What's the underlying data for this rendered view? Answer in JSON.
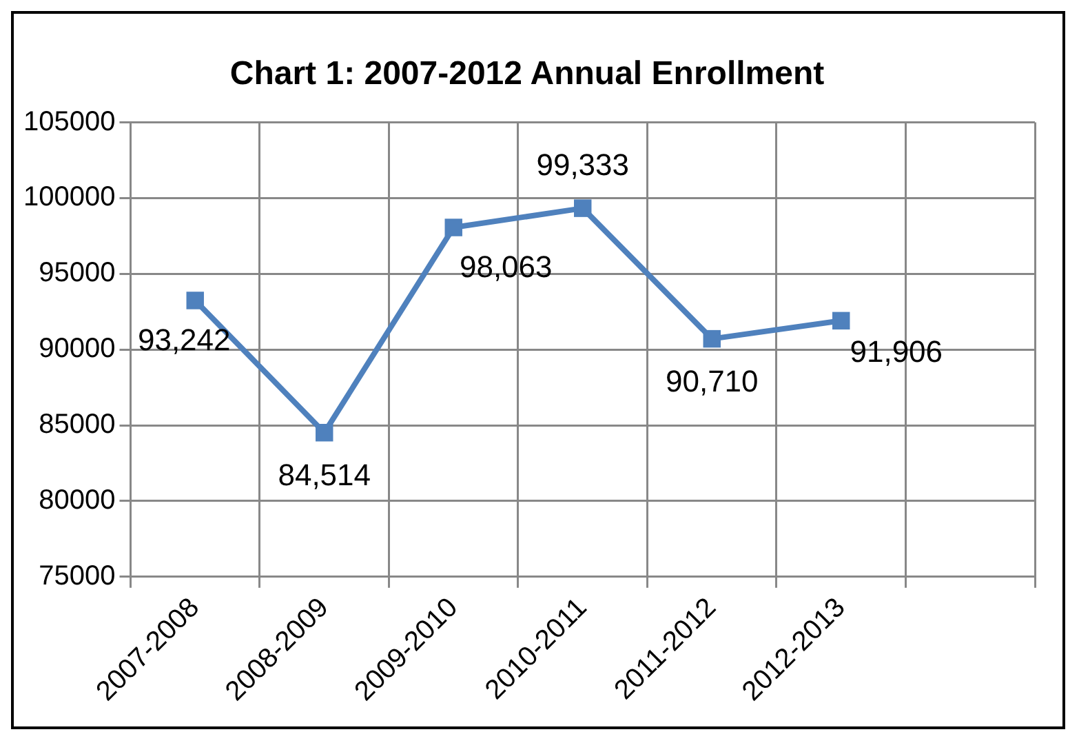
{
  "chart_data": {
    "type": "line",
    "title": "Chart 1: 2007-2012 Annual Enrollment",
    "categories": [
      "2007-2008",
      "2008-2009",
      "2009-2010",
      "2010-2011",
      "2011-2012",
      "2012-2013",
      null
    ],
    "series": [
      {
        "color": "#4f81bd",
        "values": [
          93242,
          84514,
          98063,
          99333,
          90710,
          91906,
          null
        ],
        "value_labels": [
          "93,242",
          "84,514",
          "98,063",
          "99,333",
          "90,710",
          "91,906",
          null
        ]
      }
    ],
    "ylim": [
      75000,
      105000
    ],
    "yticks": [
      75000,
      80000,
      85000,
      90000,
      95000,
      100000,
      105000
    ],
    "grid": true,
    "legend": false,
    "marker": "square",
    "line_style": "solid"
  }
}
